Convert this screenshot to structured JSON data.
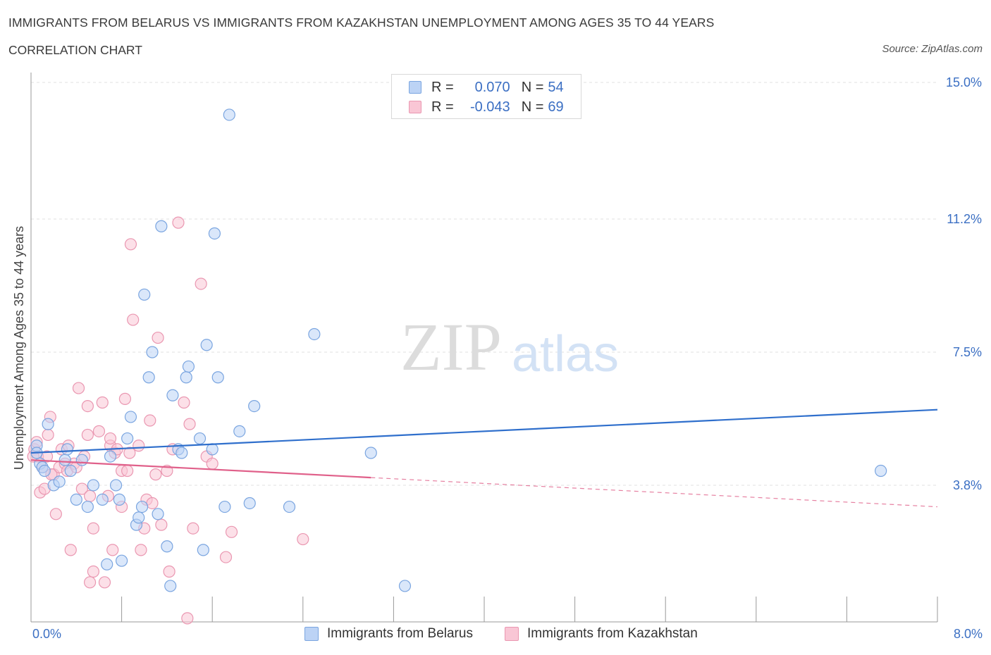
{
  "header": {
    "title": "IMMIGRANTS FROM BELARUS VS IMMIGRANTS FROM KAZAKHSTAN UNEMPLOYMENT AMONG AGES 35 TO 44 YEARS",
    "subtitle": "CORRELATION CHART",
    "source": "Source: ZipAtlas.com"
  },
  "legend": {
    "r_label": "R =",
    "n_label": "N =",
    "belarus": {
      "r": "0.070",
      "n": "54"
    },
    "kazakhstan": {
      "r": "-0.043",
      "n": "69"
    }
  },
  "watermark": {
    "zip": "ZIP",
    "atlas": "atlas"
  },
  "colors": {
    "belarus_fill": "#bcd3f5",
    "belarus_stroke": "#7aa5e0",
    "belarus_line": "#2f6fcc",
    "kazakhstan_fill": "#f9c6d5",
    "kazakhstan_stroke": "#ea97b1",
    "kazakhstan_line": "#e0608a",
    "tick_label": "#3b6fc3"
  },
  "chart_data": {
    "type": "scatter",
    "title": "IMMIGRANTS FROM BELARUS VS IMMIGRANTS FROM KAZAKHSTAN UNEMPLOYMENT AMONG AGES 35 TO 44 YEARS",
    "xlabel": "",
    "ylabel": "Unemployment Among Ages 35 to 44 years",
    "xlim": [
      0,
      8.0
    ],
    "ylim": [
      0,
      15.0
    ],
    "x_tick_labels": [
      "0.0%",
      "8.0%"
    ],
    "y_ticks": [
      3.8,
      7.5,
      11.2,
      15.0
    ],
    "y_tick_labels": [
      "3.8%",
      "7.5%",
      "11.2%",
      "15.0%"
    ],
    "grid": true,
    "legend_position": "top-center",
    "series": [
      {
        "name": "Immigrants from Belarus",
        "r": 0.07,
        "n": 54,
        "trend": {
          "x": [
            0.0,
            8.0
          ],
          "y": [
            4.7,
            5.9
          ],
          "dashed_from": null
        },
        "points": [
          [
            0.05,
            4.9
          ],
          [
            0.05,
            4.7
          ],
          [
            0.08,
            4.4
          ],
          [
            0.1,
            4.3
          ],
          [
            0.15,
            5.5
          ],
          [
            0.12,
            4.2
          ],
          [
            0.2,
            3.8
          ],
          [
            0.25,
            3.9
          ],
          [
            0.3,
            4.5
          ],
          [
            0.32,
            4.8
          ],
          [
            0.35,
            4.2
          ],
          [
            0.4,
            3.4
          ],
          [
            0.45,
            4.5
          ],
          [
            0.5,
            3.2
          ],
          [
            0.55,
            3.8
          ],
          [
            0.63,
            3.4
          ],
          [
            0.67,
            1.6
          ],
          [
            0.7,
            4.6
          ],
          [
            0.75,
            3.8
          ],
          [
            0.78,
            3.4
          ],
          [
            0.8,
            1.7
          ],
          [
            0.85,
            5.1
          ],
          [
            0.88,
            5.7
          ],
          [
            0.93,
            2.7
          ],
          [
            0.95,
            2.9
          ],
          [
            0.98,
            3.2
          ],
          [
            1.0,
            9.1
          ],
          [
            1.04,
            6.8
          ],
          [
            1.07,
            7.5
          ],
          [
            1.12,
            3.0
          ],
          [
            1.15,
            11.0
          ],
          [
            1.2,
            2.1
          ],
          [
            1.23,
            1.0
          ],
          [
            1.25,
            6.3
          ],
          [
            1.3,
            4.8
          ],
          [
            1.33,
            4.7
          ],
          [
            1.37,
            6.8
          ],
          [
            1.39,
            7.1
          ],
          [
            1.49,
            5.1
          ],
          [
            1.52,
            2.0
          ],
          [
            1.55,
            7.7
          ],
          [
            1.6,
            4.8
          ],
          [
            1.62,
            10.8
          ],
          [
            1.65,
            6.8
          ],
          [
            1.71,
            3.2
          ],
          [
            1.75,
            14.1
          ],
          [
            1.84,
            5.3
          ],
          [
            1.93,
            3.3
          ],
          [
            1.97,
            6.0
          ],
          [
            2.28,
            3.2
          ],
          [
            2.5,
            8.0
          ],
          [
            3.0,
            4.7
          ],
          [
            3.3,
            1.0
          ],
          [
            7.5,
            4.2
          ]
        ]
      },
      {
        "name": "Immigrants from Kazakhstan",
        "r": -0.043,
        "n": 69,
        "trend": {
          "x": [
            0.0,
            8.0
          ],
          "y": [
            4.5,
            3.2
          ],
          "dashed_from": 3.0
        },
        "points": [
          [
            0.03,
            4.8
          ],
          [
            0.05,
            5.0
          ],
          [
            0.06,
            4.6
          ],
          [
            0.08,
            3.6
          ],
          [
            0.1,
            4.3
          ],
          [
            0.12,
            3.7
          ],
          [
            0.14,
            4.6
          ],
          [
            0.15,
            5.2
          ],
          [
            0.17,
            5.7
          ],
          [
            0.2,
            4.1
          ],
          [
            0.22,
            3.0
          ],
          [
            0.25,
            4.3
          ],
          [
            0.27,
            4.8
          ],
          [
            0.3,
            4.4
          ],
          [
            0.32,
            4.2
          ],
          [
            0.33,
            4.9
          ],
          [
            0.35,
            2.0
          ],
          [
            0.38,
            4.4
          ],
          [
            0.4,
            4.3
          ],
          [
            0.42,
            6.5
          ],
          [
            0.45,
            3.7
          ],
          [
            0.47,
            4.6
          ],
          [
            0.5,
            5.2
          ],
          [
            0.5,
            6.0
          ],
          [
            0.52,
            3.5
          ],
          [
            0.52,
            1.1
          ],
          [
            0.55,
            2.6
          ],
          [
            0.55,
            1.4
          ],
          [
            0.6,
            5.3
          ],
          [
            0.63,
            6.1
          ],
          [
            0.65,
            1.1
          ],
          [
            0.68,
            3.5
          ],
          [
            0.7,
            4.9
          ],
          [
            0.7,
            5.1
          ],
          [
            0.72,
            2.0
          ],
          [
            0.74,
            4.7
          ],
          [
            0.76,
            4.8
          ],
          [
            0.8,
            4.2
          ],
          [
            0.8,
            3.2
          ],
          [
            0.83,
            6.2
          ],
          [
            0.85,
            4.2
          ],
          [
            0.87,
            4.7
          ],
          [
            0.88,
            10.5
          ],
          [
            0.9,
            8.4
          ],
          [
            0.95,
            4.9
          ],
          [
            0.97,
            2.0
          ],
          [
            1.0,
            2.6
          ],
          [
            1.02,
            3.4
          ],
          [
            1.05,
            5.6
          ],
          [
            1.07,
            3.3
          ],
          [
            1.1,
            4.1
          ],
          [
            1.12,
            7.9
          ],
          [
            1.15,
            2.7
          ],
          [
            1.2,
            4.2
          ],
          [
            1.22,
            1.4
          ],
          [
            1.25,
            4.8
          ],
          [
            1.3,
            11.1
          ],
          [
            1.35,
            6.1
          ],
          [
            1.38,
            0.1
          ],
          [
            1.4,
            5.5
          ],
          [
            1.43,
            2.6
          ],
          [
            1.5,
            9.4
          ],
          [
            1.55,
            4.6
          ],
          [
            1.6,
            4.4
          ],
          [
            1.72,
            1.8
          ],
          [
            1.77,
            2.5
          ],
          [
            2.4,
            2.3
          ],
          [
            0.02,
            4.6
          ],
          [
            0.18,
            4.1
          ]
        ]
      }
    ]
  },
  "bottom_legend": {
    "belarus": "Immigrants from Belarus",
    "kazakhstan": "Immigrants from Kazakhstan"
  }
}
